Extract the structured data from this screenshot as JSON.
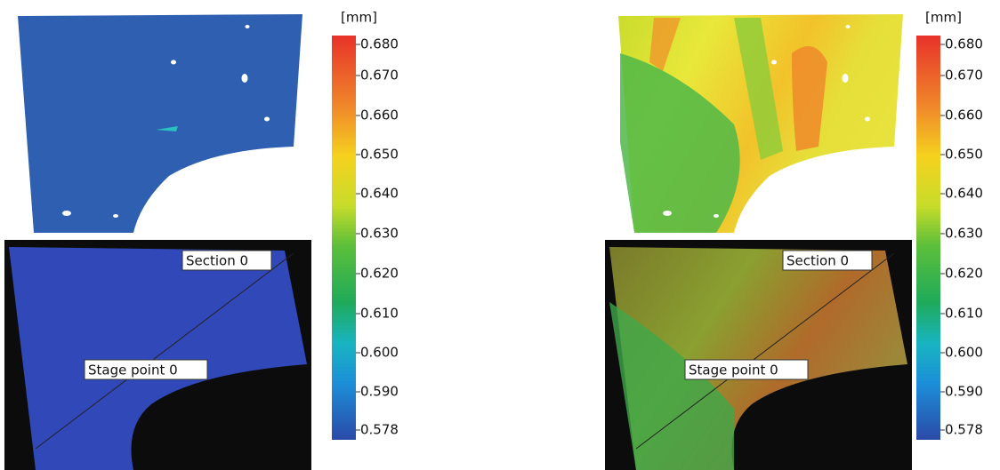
{
  "panels": [
    {
      "unit": "[mm]",
      "scale": [
        "0.680",
        "0.670",
        "0.660",
        "0.650",
        "0.640",
        "0.630",
        "0.620",
        "0.610",
        "0.600",
        "0.590",
        "0.578"
      ],
      "section_label": "Section 0",
      "stage_label": "Stage point 0"
    },
    {
      "unit": "[mm]",
      "scale": [
        "0.680",
        "0.670",
        "0.660",
        "0.650",
        "0.640",
        "0.630",
        "0.620",
        "0.610",
        "0.600",
        "0.590",
        "0.578"
      ],
      "section_label": "Section 0",
      "stage_label": "Stage point 0"
    }
  ]
}
